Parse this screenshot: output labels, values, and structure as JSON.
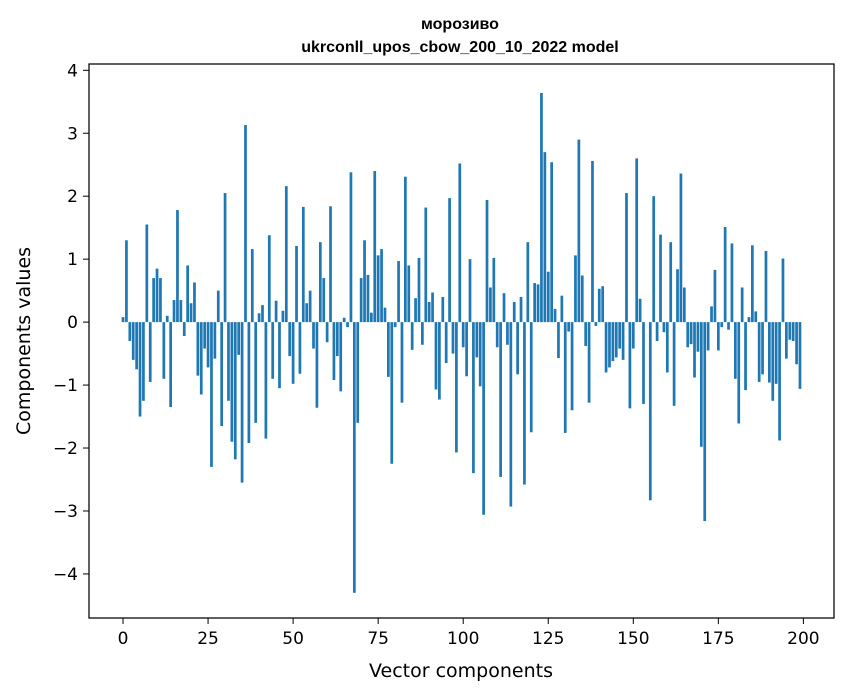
{
  "chart_data": {
    "type": "bar",
    "title": "морозиво",
    "subtitle": "ukrconll_upos_cbow_200_10_2022 model",
    "xlabel": "Vector components",
    "ylabel": "Components values",
    "xlim": [
      -10,
      209
    ],
    "ylim": [
      -4.7,
      4.1
    ],
    "xticks": [
      0,
      25,
      50,
      75,
      100,
      125,
      150,
      175,
      200
    ],
    "xtick_labels": [
      "0",
      "25",
      "50",
      "75",
      "100",
      "125",
      "150",
      "175",
      "200"
    ],
    "yticks": [
      -4,
      -3,
      -2,
      -1,
      0,
      1,
      2,
      3,
      4
    ],
    "ytick_labels": [
      "−4",
      "−3",
      "−2",
      "−1",
      "0",
      "1",
      "2",
      "3",
      "4"
    ],
    "color": "#1f77b4",
    "values": [
      0.08,
      1.3,
      -0.3,
      -0.6,
      -0.75,
      -1.5,
      -1.25,
      1.55,
      -0.95,
      0.7,
      0.85,
      0.7,
      -0.9,
      0.1,
      -1.35,
      0.35,
      1.78,
      0.35,
      -0.22,
      0.9,
      0.3,
      0.63,
      -0.85,
      -1.15,
      -0.42,
      -0.72,
      -2.3,
      -0.58,
      0.5,
      -1.65,
      2.05,
      -1.25,
      -1.9,
      -2.18,
      -0.52,
      -2.55,
      3.13,
      -1.92,
      1.16,
      -1.6,
      0.14,
      0.27,
      -1.85,
      1.38,
      -0.9,
      0.34,
      -1.05,
      0.18,
      2.16,
      -0.54,
      -0.98,
      1.21,
      -0.82,
      1.83,
      0.3,
      0.5,
      -0.42,
      -1.36,
      1.27,
      0.7,
      -0.32,
      1.84,
      -0.92,
      -0.54,
      -1.1,
      0.07,
      -0.08,
      2.38,
      -4.3,
      -1.6,
      0.7,
      1.3,
      0.75,
      0.15,
      2.4,
      1.06,
      1.16,
      0.23,
      -0.87,
      -2.25,
      -0.08,
      0.97,
      -1.28,
      2.31,
      0.9,
      -0.44,
      0.38,
      1.02,
      -0.36,
      1.82,
      0.32,
      0.47,
      -1.07,
      -1.23,
      0.4,
      -0.65,
      1.97,
      -0.5,
      -2.07,
      2.52,
      -0.4,
      -0.86,
      1.0,
      -2.4,
      -0.56,
      -1.02,
      -3.06,
      1.94,
      0.55,
      1.02,
      -0.4,
      -2.46,
      0.46,
      -0.36,
      -2.93,
      0.32,
      -0.83,
      0.4,
      -2.58,
      1.27,
      -1.75,
      0.62,
      0.6,
      3.64,
      2.7,
      0.8,
      2.54,
      0.21,
      -0.57,
      0.42,
      -1.76,
      -0.15,
      -1.4,
      1.06,
      2.9,
      0.74,
      -0.38,
      -1.28,
      2.56,
      -0.06,
      0.53,
      0.57,
      -0.8,
      -0.72,
      -0.62,
      -0.56,
      -0.42,
      -0.6,
      2.05,
      -1.37,
      -0.42,
      2.6,
      0.37,
      -1.3,
      0.0,
      -2.83,
      2.0,
      -0.3,
      1.39,
      -0.16,
      -0.8,
      1.27,
      -1.33,
      0.84,
      2.36,
      0.55,
      -0.4,
      -0.35,
      -0.88,
      -0.47,
      -1.98,
      -3.16,
      -0.45,
      0.25,
      0.83,
      -0.45,
      -0.08,
      1.51,
      -0.12,
      1.25,
      -0.9,
      -1.61,
      0.55,
      -1.08,
      0.08,
      1.22,
      0.17,
      -0.95,
      -0.83,
      1.13,
      -0.96,
      -1.25,
      -0.98,
      -1.88,
      1.01,
      -0.58,
      -0.28,
      -0.3,
      -0.67,
      -1.06
    ]
  }
}
